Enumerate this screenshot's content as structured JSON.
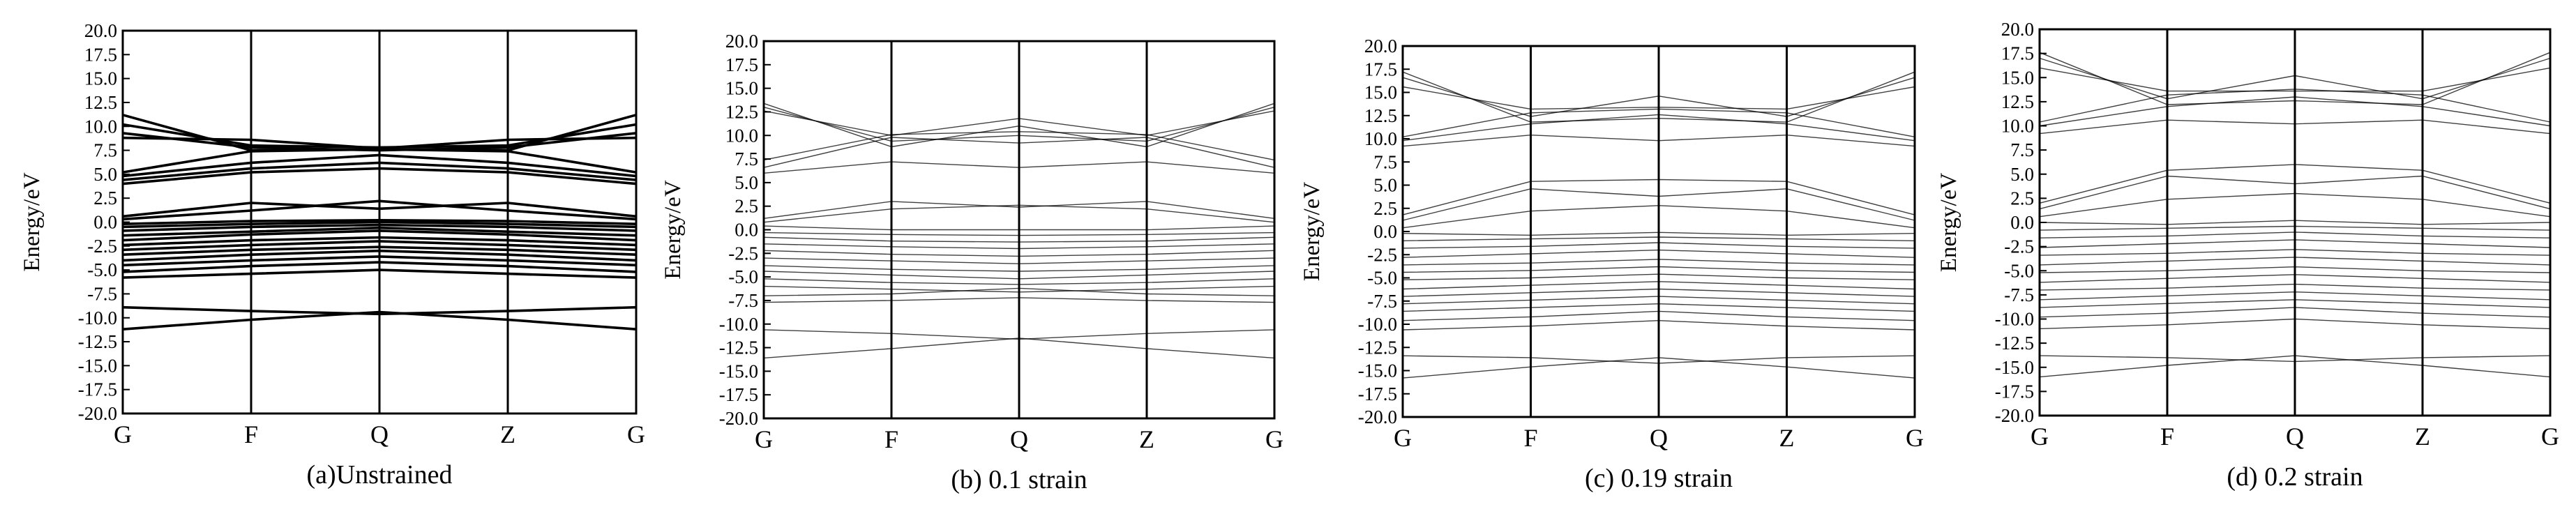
{
  "figure": {
    "background": "#ffffff",
    "band_color": "#000000"
  },
  "chart_data": [
    {
      "type": "line",
      "panel": "a",
      "caption": "(a)Unstrained",
      "ylabel": "Energy/eV",
      "xlabel": "",
      "k_path": [
        "G",
        "F",
        "Q",
        "Z",
        "G"
      ],
      "x": [
        0,
        1,
        2,
        3,
        4
      ],
      "ylim": [
        -20,
        20
      ],
      "yticks": [
        "20.0",
        "17.5",
        "15.0",
        "12.5",
        "10.0",
        "7.5",
        "5.0",
        "2.5",
        "0.0",
        "-2.5",
        "-5.0",
        "-7.5",
        "-10.0",
        "-12.5",
        "-15.0",
        "-17.5",
        "-20.0"
      ],
      "grid": false,
      "line_weight": "heavy",
      "series": [
        {
          "values": [
            -11.2,
            -10.2,
            -9.4,
            -10.2,
            -11.2
          ]
        },
        {
          "values": [
            -8.9,
            -9.3,
            -9.6,
            -9.3,
            -8.9
          ]
        },
        {
          "values": [
            -5.8,
            -5.4,
            -5.0,
            -5.4,
            -5.8
          ]
        },
        {
          "values": [
            -5.2,
            -4.6,
            -4.2,
            -4.6,
            -5.2
          ]
        },
        {
          "values": [
            -4.5,
            -4.0,
            -3.6,
            -4.0,
            -4.5
          ]
        },
        {
          "values": [
            -4.0,
            -3.4,
            -3.0,
            -3.4,
            -4.0
          ]
        },
        {
          "values": [
            -3.4,
            -2.9,
            -2.6,
            -2.9,
            -3.4
          ]
        },
        {
          "values": [
            -2.9,
            -2.4,
            -2.0,
            -2.4,
            -2.9
          ]
        },
        {
          "values": [
            -2.4,
            -1.9,
            -1.6,
            -1.9,
            -2.4
          ]
        },
        {
          "values": [
            -1.9,
            -1.3,
            -0.9,
            -1.3,
            -1.9
          ]
        },
        {
          "values": [
            -1.4,
            -1.0,
            -0.6,
            -1.0,
            -1.4
          ]
        },
        {
          "values": [
            -0.9,
            -0.5,
            -0.3,
            -0.5,
            -0.9
          ]
        },
        {
          "values": [
            -0.5,
            -0.2,
            0.0,
            -0.2,
            -0.5
          ]
        },
        {
          "values": [
            -0.2,
            0.1,
            0.2,
            0.1,
            -0.2
          ]
        },
        {
          "values": [
            0.3,
            1.2,
            2.2,
            1.2,
            0.3
          ]
        },
        {
          "values": [
            0.6,
            2.0,
            1.4,
            2.0,
            0.6
          ]
        },
        {
          "values": [
            4.0,
            5.2,
            5.6,
            5.2,
            4.0
          ]
        },
        {
          "values": [
            4.4,
            5.6,
            6.2,
            5.6,
            4.4
          ]
        },
        {
          "values": [
            4.8,
            6.2,
            7.0,
            6.2,
            4.8
          ]
        },
        {
          "values": [
            5.2,
            7.4,
            7.6,
            7.4,
            5.2
          ]
        },
        {
          "values": [
            9.3,
            7.8,
            7.5,
            7.8,
            9.3
          ]
        },
        {
          "values": [
            10.2,
            8.0,
            7.8,
            8.0,
            10.2
          ]
        },
        {
          "values": [
            11.2,
            7.5,
            7.6,
            7.5,
            11.2
          ]
        },
        {
          "values": [
            8.8,
            8.6,
            7.7,
            8.6,
            8.8
          ]
        }
      ]
    },
    {
      "type": "line",
      "panel": "b",
      "caption": "(b) 0.1 strain",
      "ylabel": "Energy/eV",
      "xlabel": "",
      "k_path": [
        "G",
        "F",
        "Q",
        "Z",
        "G"
      ],
      "x": [
        0,
        1,
        2,
        3,
        4
      ],
      "ylim": [
        -20,
        20
      ],
      "yticks": [
        "20.0",
        "17.5",
        "15.0",
        "12.5",
        "10.0",
        "7.5",
        "5.0",
        "2.5",
        "0.0",
        "-2.5",
        "-5.0",
        "-7.5",
        "-10.0",
        "-12.5",
        "-15.0",
        "-17.5",
        "-20.0"
      ],
      "grid": false,
      "line_weight": "thin",
      "series": [
        {
          "values": [
            -13.6,
            -12.6,
            -11.5,
            -12.6,
            -13.6
          ]
        },
        {
          "values": [
            -10.6,
            -11.0,
            -11.6,
            -11.0,
            -10.6
          ]
        },
        {
          "values": [
            -7.7,
            -7.5,
            -7.2,
            -7.5,
            -7.7
          ]
        },
        {
          "values": [
            -7.0,
            -6.8,
            -6.2,
            -6.8,
            -7.0
          ]
        },
        {
          "values": [
            -6.0,
            -6.3,
            -6.6,
            -6.3,
            -6.0
          ]
        },
        {
          "values": [
            -5.2,
            -5.6,
            -5.8,
            -5.6,
            -5.2
          ]
        },
        {
          "values": [
            -4.4,
            -4.8,
            -5.2,
            -4.8,
            -4.4
          ]
        },
        {
          "values": [
            -3.8,
            -4.2,
            -4.4,
            -4.2,
            -3.8
          ]
        },
        {
          "values": [
            -3.0,
            -3.3,
            -3.6,
            -3.3,
            -3.0
          ]
        },
        {
          "values": [
            -2.2,
            -2.6,
            -2.8,
            -2.6,
            -2.2
          ]
        },
        {
          "values": [
            -1.5,
            -1.8,
            -2.0,
            -1.8,
            -1.5
          ]
        },
        {
          "values": [
            -0.8,
            -1.2,
            -1.3,
            -1.2,
            -0.8
          ]
        },
        {
          "values": [
            -0.3,
            -0.5,
            -0.6,
            -0.5,
            -0.3
          ]
        },
        {
          "values": [
            0.4,
            0.0,
            0.0,
            0.0,
            0.4
          ]
        },
        {
          "values": [
            0.8,
            2.2,
            2.6,
            2.2,
            0.8
          ]
        },
        {
          "values": [
            1.2,
            3.0,
            2.4,
            3.0,
            1.2
          ]
        },
        {
          "values": [
            6.0,
            7.2,
            6.6,
            7.2,
            6.0
          ]
        },
        {
          "values": [
            6.6,
            9.8,
            9.2,
            9.8,
            6.6
          ]
        },
        {
          "values": [
            7.4,
            10.1,
            10.4,
            10.1,
            7.4
          ]
        },
        {
          "values": [
            12.6,
            10.0,
            11.8,
            10.0,
            12.6
          ]
        },
        {
          "values": [
            13.0,
            9.4,
            10.0,
            9.4,
            13.0
          ]
        },
        {
          "values": [
            13.4,
            8.8,
            11.0,
            8.8,
            13.4
          ]
        }
      ]
    },
    {
      "type": "line",
      "panel": "c",
      "caption": "(c) 0.19 strain",
      "ylabel": "Energy/eV",
      "xlabel": "",
      "k_path": [
        "G",
        "F",
        "Q",
        "Z",
        "G"
      ],
      "x": [
        0,
        1,
        2,
        3,
        4
      ],
      "ylim": [
        -20,
        20
      ],
      "yticks": [
        "20.0",
        "17.5",
        "15.0",
        "12.5",
        "10.0",
        "7.5",
        "5.0",
        "2.5",
        "0.0",
        "-2.5",
        "-5.0",
        "-7.5",
        "-10.0",
        "-12.5",
        "-15.0",
        "-17.5",
        "-20.0"
      ],
      "grid": false,
      "line_weight": "thin",
      "series": [
        {
          "values": [
            -15.8,
            -14.6,
            -13.6,
            -14.6,
            -15.8
          ]
        },
        {
          "values": [
            -13.4,
            -13.6,
            -14.2,
            -13.6,
            -13.4
          ]
        },
        {
          "values": [
            -10.6,
            -10.2,
            -9.6,
            -10.2,
            -10.6
          ]
        },
        {
          "values": [
            -9.6,
            -9.2,
            -8.6,
            -9.2,
            -9.6
          ]
        },
        {
          "values": [
            -8.6,
            -8.2,
            -7.8,
            -8.2,
            -8.6
          ]
        },
        {
          "values": [
            -7.8,
            -7.4,
            -7.0,
            -7.4,
            -7.8
          ]
        },
        {
          "values": [
            -7.0,
            -6.6,
            -6.2,
            -6.6,
            -7.0
          ]
        },
        {
          "values": [
            -6.2,
            -5.8,
            -5.4,
            -5.8,
            -6.2
          ]
        },
        {
          "values": [
            -5.2,
            -5.0,
            -4.6,
            -5.0,
            -5.2
          ]
        },
        {
          "values": [
            -4.4,
            -4.2,
            -3.8,
            -4.2,
            -4.4
          ]
        },
        {
          "values": [
            -3.6,
            -3.4,
            -3.0,
            -3.4,
            -3.6
          ]
        },
        {
          "values": [
            -2.8,
            -2.4,
            -2.0,
            -2.4,
            -2.8
          ]
        },
        {
          "values": [
            -1.8,
            -1.6,
            -1.2,
            -1.6,
            -1.8
          ]
        },
        {
          "values": [
            -1.0,
            -0.8,
            -0.6,
            -0.8,
            -1.0
          ]
        },
        {
          "values": [
            -0.2,
            -0.4,
            -0.1,
            -0.4,
            -0.2
          ]
        },
        {
          "values": [
            0.4,
            2.2,
            2.8,
            2.2,
            0.4
          ]
        },
        {
          "values": [
            1.2,
            4.6,
            3.8,
            4.6,
            1.2
          ]
        },
        {
          "values": [
            1.8,
            5.4,
            5.6,
            5.4,
            1.8
          ]
        },
        {
          "values": [
            9.2,
            10.4,
            9.8,
            10.4,
            9.2
          ]
        },
        {
          "values": [
            9.8,
            11.6,
            12.6,
            11.6,
            9.8
          ]
        },
        {
          "values": [
            10.2,
            12.8,
            13.2,
            12.8,
            10.2
          ]
        },
        {
          "values": [
            15.6,
            13.2,
            13.4,
            13.2,
            15.6
          ]
        },
        {
          "values": [
            16.6,
            12.4,
            14.6,
            12.4,
            16.6
          ]
        },
        {
          "values": [
            17.2,
            11.8,
            12.2,
            11.8,
            17.2
          ]
        }
      ]
    },
    {
      "type": "line",
      "panel": "d",
      "caption": "(d) 0.2 strain",
      "ylabel": "Energy/eV",
      "xlabel": "",
      "k_path": [
        "G",
        "F",
        "Q",
        "Z",
        "G"
      ],
      "x": [
        0,
        1,
        2,
        3,
        4
      ],
      "ylim": [
        -20,
        20
      ],
      "yticks": [
        "20.0",
        "17.5",
        "15.0",
        "12.5",
        "10.0",
        "7.5",
        "5.0",
        "2.5",
        "0.0",
        "-2.5",
        "-5.0",
        "-7.5",
        "-10.0",
        "-12.5",
        "-15.0",
        "-17.5",
        "-20.0"
      ],
      "grid": false,
      "line_weight": "thin",
      "series": [
        {
          "values": [
            -16.0,
            -14.8,
            -13.8,
            -14.8,
            -16.0
          ]
        },
        {
          "values": [
            -13.8,
            -14.0,
            -14.4,
            -14.0,
            -13.8
          ]
        },
        {
          "values": [
            -11.0,
            -10.6,
            -10.0,
            -10.6,
            -11.0
          ]
        },
        {
          "values": [
            -9.8,
            -9.4,
            -8.8,
            -9.4,
            -9.8
          ]
        },
        {
          "values": [
            -8.8,
            -8.4,
            -8.0,
            -8.4,
            -8.8
          ]
        },
        {
          "values": [
            -8.0,
            -7.6,
            -7.2,
            -7.6,
            -8.0
          ]
        },
        {
          "values": [
            -7.0,
            -6.8,
            -6.4,
            -6.8,
            -7.0
          ]
        },
        {
          "values": [
            -6.2,
            -5.8,
            -5.4,
            -5.8,
            -6.2
          ]
        },
        {
          "values": [
            -5.2,
            -5.0,
            -4.6,
            -5.0,
            -5.2
          ]
        },
        {
          "values": [
            -4.4,
            -4.0,
            -3.6,
            -4.0,
            -4.4
          ]
        },
        {
          "values": [
            -3.4,
            -3.2,
            -2.8,
            -3.2,
            -3.4
          ]
        },
        {
          "values": [
            -2.6,
            -2.2,
            -1.8,
            -2.2,
            -2.6
          ]
        },
        {
          "values": [
            -1.6,
            -1.4,
            -1.0,
            -1.4,
            -1.6
          ]
        },
        {
          "values": [
            -0.8,
            -0.6,
            -0.4,
            -0.6,
            -0.8
          ]
        },
        {
          "values": [
            0.0,
            -0.2,
            0.2,
            -0.2,
            0.0
          ]
        },
        {
          "values": [
            0.6,
            2.4,
            3.0,
            2.4,
            0.6
          ]
        },
        {
          "values": [
            1.4,
            4.8,
            4.0,
            4.8,
            1.4
          ]
        },
        {
          "values": [
            2.0,
            5.4,
            6.0,
            5.4,
            2.0
          ]
        },
        {
          "values": [
            9.2,
            10.6,
            10.2,
            10.6,
            9.2
          ]
        },
        {
          "values": [
            10.0,
            12.0,
            13.0,
            12.0,
            10.0
          ]
        },
        {
          "values": [
            10.4,
            13.2,
            13.8,
            13.2,
            10.4
          ]
        },
        {
          "values": [
            16.0,
            13.6,
            13.6,
            13.6,
            16.0
          ]
        },
        {
          "values": [
            17.0,
            12.8,
            15.2,
            12.8,
            17.0
          ]
        },
        {
          "values": [
            17.6,
            12.2,
            12.6,
            12.2,
            17.6
          ]
        }
      ]
    }
  ]
}
